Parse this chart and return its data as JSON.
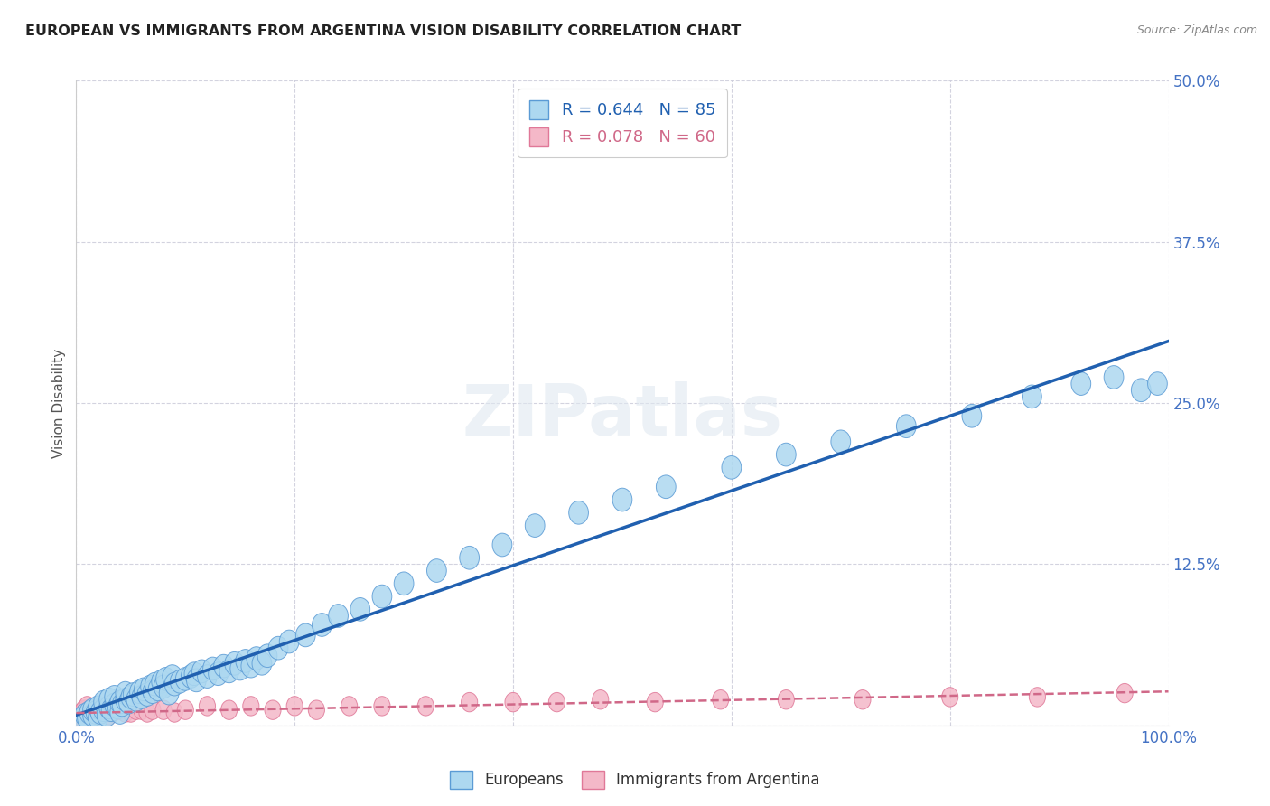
{
  "title": "EUROPEAN VS IMMIGRANTS FROM ARGENTINA VISION DISABILITY CORRELATION CHART",
  "source": "Source: ZipAtlas.com",
  "ylabel": "Vision Disability",
  "r_european": 0.644,
  "n_european": 85,
  "r_argentina": 0.078,
  "n_argentina": 60,
  "xlim": [
    0,
    1
  ],
  "ylim": [
    0,
    0.5
  ],
  "yticks": [
    0,
    0.125,
    0.25,
    0.375,
    0.5
  ],
  "ytick_labels": [
    "",
    "12.5%",
    "25.0%",
    "37.5%",
    "50.0%"
  ],
  "watermark": "ZIPatlas",
  "color_european": "#add8f0",
  "color_argentina": "#f4b8c8",
  "edge_color_european": "#5b9bd5",
  "edge_color_argentina": "#e07898",
  "line_color_european": "#2060b0",
  "line_color_argentina": "#d06888",
  "background_color": "#ffffff",
  "european_x": [
    0.005,
    0.008,
    0.01,
    0.012,
    0.015,
    0.015,
    0.018,
    0.02,
    0.02,
    0.022,
    0.025,
    0.025,
    0.028,
    0.03,
    0.03,
    0.032,
    0.035,
    0.035,
    0.038,
    0.04,
    0.04,
    0.042,
    0.045,
    0.045,
    0.048,
    0.05,
    0.052,
    0.055,
    0.058,
    0.06,
    0.062,
    0.065,
    0.068,
    0.07,
    0.072,
    0.075,
    0.078,
    0.08,
    0.082,
    0.085,
    0.088,
    0.09,
    0.095,
    0.1,
    0.105,
    0.108,
    0.11,
    0.115,
    0.12,
    0.125,
    0.13,
    0.135,
    0.14,
    0.145,
    0.15,
    0.155,
    0.16,
    0.165,
    0.17,
    0.175,
    0.185,
    0.195,
    0.21,
    0.225,
    0.24,
    0.26,
    0.28,
    0.3,
    0.33,
    0.36,
    0.39,
    0.42,
    0.46,
    0.5,
    0.54,
    0.6,
    0.65,
    0.7,
    0.76,
    0.82,
    0.875,
    0.92,
    0.95,
    0.975,
    0.99
  ],
  "european_y": [
    0.005,
    0.008,
    0.006,
    0.01,
    0.008,
    0.012,
    0.01,
    0.006,
    0.014,
    0.01,
    0.012,
    0.018,
    0.008,
    0.014,
    0.02,
    0.012,
    0.016,
    0.022,
    0.014,
    0.01,
    0.018,
    0.016,
    0.02,
    0.025,
    0.018,
    0.022,
    0.024,
    0.02,
    0.026,
    0.022,
    0.028,
    0.024,
    0.03,
    0.026,
    0.032,
    0.028,
    0.034,
    0.03,
    0.036,
    0.025,
    0.038,
    0.032,
    0.034,
    0.036,
    0.038,
    0.04,
    0.035,
    0.042,
    0.038,
    0.044,
    0.04,
    0.046,
    0.042,
    0.048,
    0.044,
    0.05,
    0.046,
    0.052,
    0.048,
    0.054,
    0.06,
    0.065,
    0.07,
    0.078,
    0.085,
    0.09,
    0.1,
    0.11,
    0.12,
    0.13,
    0.14,
    0.155,
    0.165,
    0.175,
    0.185,
    0.2,
    0.21,
    0.22,
    0.232,
    0.24,
    0.255,
    0.265,
    0.27,
    0.26,
    0.265
  ],
  "argentina_x": [
    0.002,
    0.003,
    0.004,
    0.005,
    0.005,
    0.006,
    0.007,
    0.007,
    0.008,
    0.008,
    0.009,
    0.009,
    0.01,
    0.01,
    0.011,
    0.012,
    0.013,
    0.014,
    0.015,
    0.016,
    0.017,
    0.018,
    0.019,
    0.02,
    0.022,
    0.025,
    0.028,
    0.03,
    0.033,
    0.036,
    0.04,
    0.045,
    0.05,
    0.055,
    0.06,
    0.065,
    0.07,
    0.08,
    0.09,
    0.1,
    0.12,
    0.14,
    0.16,
    0.18,
    0.2,
    0.22,
    0.25,
    0.28,
    0.32,
    0.36,
    0.4,
    0.44,
    0.48,
    0.53,
    0.59,
    0.65,
    0.72,
    0.8,
    0.88,
    0.96
  ],
  "argentina_y": [
    0.004,
    0.006,
    0.005,
    0.008,
    0.01,
    0.006,
    0.008,
    0.012,
    0.007,
    0.01,
    0.006,
    0.012,
    0.008,
    0.015,
    0.01,
    0.008,
    0.012,
    0.01,
    0.012,
    0.008,
    0.01,
    0.012,
    0.008,
    0.01,
    0.012,
    0.01,
    0.012,
    0.008,
    0.01,
    0.012,
    0.012,
    0.01,
    0.01,
    0.012,
    0.012,
    0.01,
    0.012,
    0.012,
    0.01,
    0.012,
    0.015,
    0.012,
    0.015,
    0.012,
    0.015,
    0.012,
    0.015,
    0.015,
    0.015,
    0.018,
    0.018,
    0.018,
    0.02,
    0.018,
    0.02,
    0.02,
    0.02,
    0.022,
    0.022,
    0.025
  ]
}
